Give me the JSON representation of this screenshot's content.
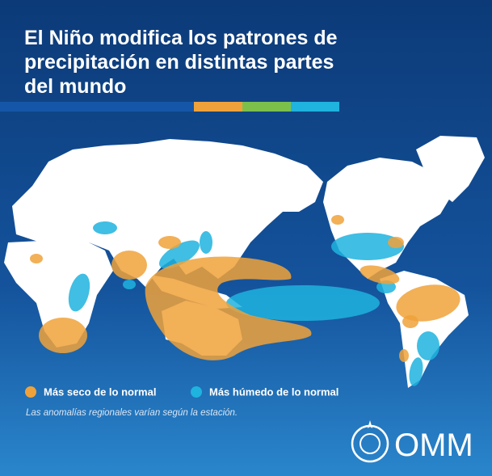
{
  "header": {
    "title_lines": [
      "El Niño modifica los patrones de",
      "precipitación en distintas partes",
      "del mundo"
    ]
  },
  "legend": {
    "items": [
      {
        "label": "Más seco de lo normal",
        "color": "#f0a23a"
      },
      {
        "label": "Más húmedo de lo normal",
        "color": "#1fb3df"
      }
    ]
  },
  "note": "Las anomalías regionales varían según la estación.",
  "logo": {
    "text": "OMM"
  }
}
